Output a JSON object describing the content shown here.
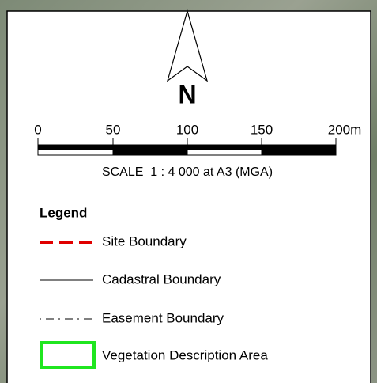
{
  "north_arrow": {
    "label": "N"
  },
  "scale_bar": {
    "labels": [
      "0",
      "50",
      "100",
      "150",
      "200m"
    ],
    "caption": "SCALE  1 : 4 000 at A3 (MGA)"
  },
  "legend": {
    "title": "Legend",
    "items": [
      {
        "label": "Site Boundary"
      },
      {
        "label": "Cadastral Boundary"
      },
      {
        "label": "Easement Boundary"
      },
      {
        "label": "Vegetation Description Area"
      }
    ]
  }
}
